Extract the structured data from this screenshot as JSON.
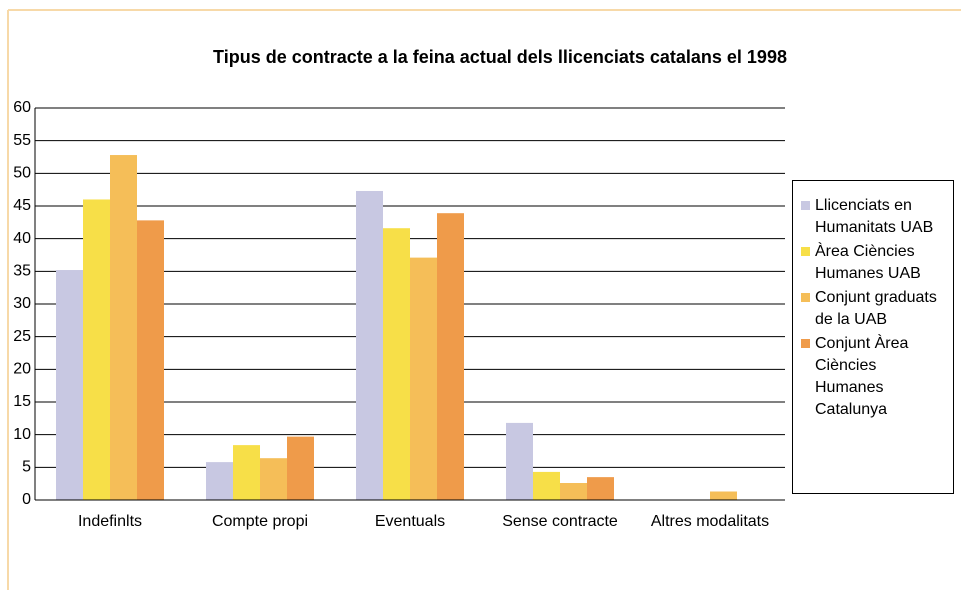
{
  "chart_data": {
    "type": "bar",
    "title": "Tipus de contracte a la feina actual dels llicenciats catalans el 1998",
    "categories": [
      "Indefinlts",
      "Compte propi",
      "Eventuals",
      "Sense contracte",
      "Altres modalitats"
    ],
    "series": [
      {
        "name": "Llicenciats en Humanitats UAB",
        "color": "#c8c8e2",
        "values": [
          35.2,
          5.8,
          47.3,
          11.8,
          0
        ]
      },
      {
        "name": "Àrea Ciències Humanes UAB",
        "color": "#f7df48",
        "values": [
          46,
          8.4,
          41.6,
          4.3,
          0
        ]
      },
      {
        "name": "Conjunt graduats de la UAB",
        "color": "#f5be58",
        "values": [
          52.8,
          6.4,
          37.1,
          2.6,
          1.3
        ]
      },
      {
        "name": "Conjunt Àrea Ciències Humanes Catalunya",
        "color": "#ef9b4a",
        "values": [
          42.8,
          9.7,
          43.9,
          3.5,
          0
        ]
      }
    ],
    "ylim": [
      0,
      60
    ],
    "yticks": [
      0,
      5,
      10,
      15,
      20,
      25,
      30,
      35,
      40,
      45,
      50,
      55,
      60
    ],
    "grid": true,
    "legend": "right"
  }
}
